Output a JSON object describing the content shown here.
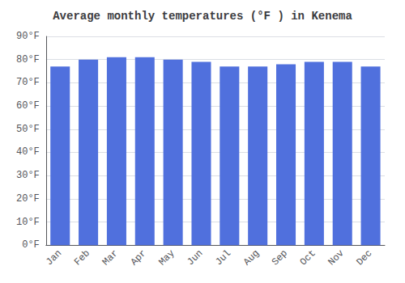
{
  "chart_data": {
    "type": "bar",
    "title": "Average monthly temperatures (°F ) in Kenema",
    "categories": [
      "Jan",
      "Feb",
      "Mar",
      "Apr",
      "May",
      "Jun",
      "Jul",
      "Aug",
      "Sep",
      "Oct",
      "Nov",
      "Dec"
    ],
    "values": [
      77,
      80,
      81,
      81,
      80,
      79,
      77,
      77,
      78,
      79,
      79,
      77
    ],
    "ylim": [
      0,
      90
    ],
    "yticks": [
      {
        "value": 0,
        "label": "0°F"
      },
      {
        "value": 10,
        "label": "10°F"
      },
      {
        "value": 20,
        "label": "20°F"
      },
      {
        "value": 30,
        "label": "30°F"
      },
      {
        "value": 40,
        "label": "40°F"
      },
      {
        "value": 50,
        "label": "50°F"
      },
      {
        "value": 60,
        "label": "60°F"
      },
      {
        "value": 70,
        "label": "70°F"
      },
      {
        "value": 80,
        "label": "80°F"
      },
      {
        "value": 90,
        "label": "90°F"
      }
    ],
    "grid": true
  }
}
